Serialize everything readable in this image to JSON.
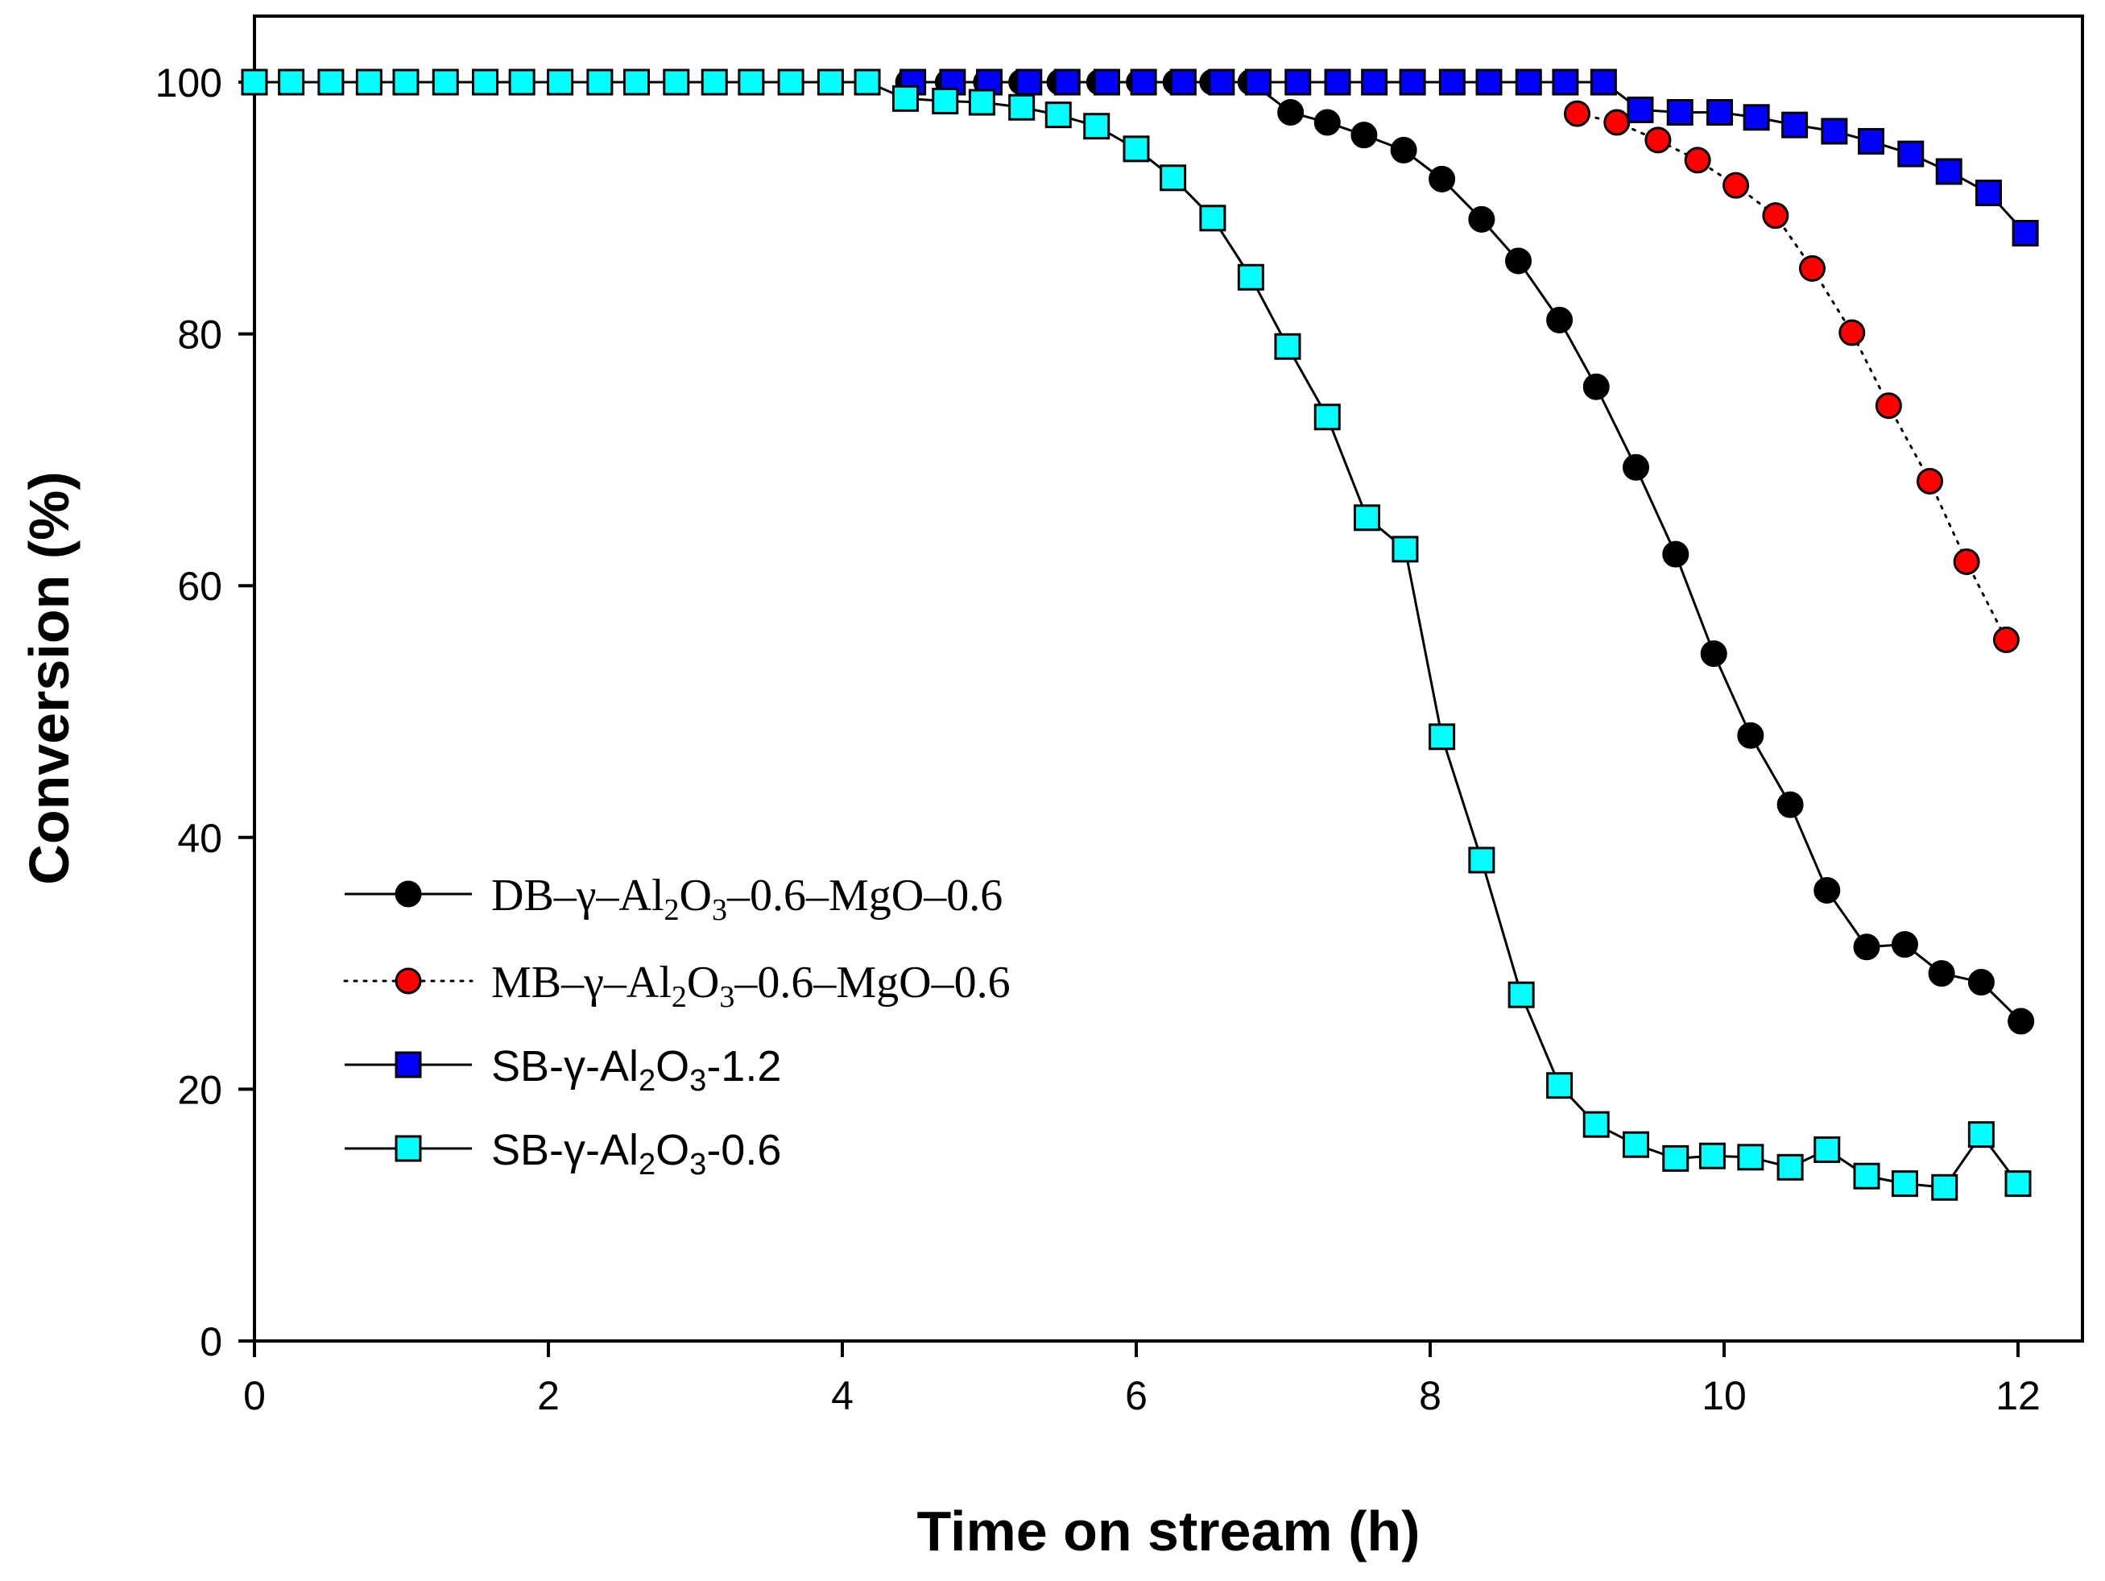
{
  "chart_data": {
    "type": "line",
    "title": "",
    "xlabel": "Time on stream (h)",
    "ylabel": "Conversion (%)",
    "xlim": [
      0,
      12.5
    ],
    "ylim": [
      0,
      100
    ],
    "xticks": [
      0,
      2,
      4,
      6,
      8,
      10,
      12
    ],
    "yticks": [
      0,
      20,
      40,
      60,
      80,
      100
    ],
    "grid": false,
    "legend_position": "lower-left",
    "series": [
      {
        "name": "DB–γ–Al2O3–0.6–MgO–0.6",
        "legend": {
          "pre": "DB–γ–Al",
          "sub1": "2",
          "mid": "O",
          "sub2": "3",
          "post": "–0.6–MgO–0.6"
        },
        "marker": "circle",
        "line_style": "solid",
        "color": "#000000",
        "stroke": "#000000",
        "x": [
          4.45,
          4.72,
          4.98,
          5.22,
          5.48,
          5.75,
          6.02,
          6.27,
          6.52,
          6.78,
          7.05,
          7.3,
          7.55,
          7.82,
          8.08,
          8.35,
          8.6,
          8.88,
          9.13,
          9.4,
          9.67,
          9.93,
          10.18,
          10.45,
          10.7,
          10.97,
          11.23,
          11.48,
          11.75,
          12.02
        ],
        "y": [
          100,
          100,
          100,
          100,
          100,
          100,
          100,
          100,
          100,
          100,
          97.6,
          96.8,
          95.8,
          94.6,
          92.3,
          89.1,
          85.8,
          81.1,
          75.8,
          69.4,
          62.5,
          54.6,
          48.1,
          42.6,
          35.8,
          31.3,
          31.5,
          29.2,
          28.5,
          25.4
        ]
      },
      {
        "name": "MB–γ–Al2O3–0.6–MgO–0.6",
        "legend": {
          "pre": "MB–γ–Al",
          "sub1": "2",
          "mid": "O",
          "sub2": "3",
          "post": "–0.6–MgO–0.6"
        },
        "marker": "circle",
        "line_style": "dotted",
        "color": "#ff0000",
        "stroke": "#000000",
        "x": [
          9.0,
          9.27,
          9.55,
          9.82,
          10.08,
          10.35,
          10.6,
          10.87,
          11.12,
          11.4,
          11.65,
          11.92
        ],
        "y": [
          97.5,
          96.8,
          95.4,
          93.8,
          91.8,
          89.4,
          85.2,
          80.1,
          74.3,
          68.3,
          61.9,
          55.7
        ]
      },
      {
        "name": "SB-γ-Al2O3-1.2",
        "legend": {
          "pre": "SB-γ-Al",
          "sub1": "2",
          "mid": "O",
          "sub2": "3",
          "post": "-1.2"
        },
        "marker": "square",
        "line_style": "solid",
        "color": "#0000ff",
        "stroke": "#000000",
        "x": [
          4.48,
          4.75,
          5.0,
          5.27,
          5.53,
          5.8,
          6.05,
          6.32,
          6.58,
          6.83,
          7.1,
          7.37,
          7.62,
          7.88,
          8.15,
          8.4,
          8.67,
          8.92,
          9.18,
          9.43,
          9.7,
          9.97,
          10.22,
          10.48,
          10.75,
          11.0,
          11.27,
          11.53,
          11.8,
          12.05
        ],
        "y": [
          100,
          100,
          100,
          100,
          100,
          100,
          100,
          100,
          100,
          100,
          100,
          100,
          100,
          100,
          100,
          100,
          100,
          100,
          100,
          97.8,
          97.6,
          97.6,
          97.2,
          96.6,
          96.1,
          95.3,
          94.3,
          92.9,
          91.2,
          88.0
        ]
      },
      {
        "name": "SB-γ-Al2O3-0.6",
        "legend": {
          "pre": "SB-γ-Al",
          "sub1": "2",
          "mid": "O",
          "sub2": "3",
          "post": "-0.6"
        },
        "marker": "square",
        "line_style": "solid",
        "color": "#00ffff",
        "stroke": "#000000",
        "x": [
          0.0,
          0.25,
          0.52,
          0.78,
          1.03,
          1.3,
          1.57,
          1.82,
          2.08,
          2.35,
          2.6,
          2.87,
          3.13,
          3.38,
          3.65,
          3.92,
          4.17,
          4.43,
          4.7,
          4.95,
          5.22,
          5.47,
          5.73,
          6.0,
          6.25,
          6.52,
          6.78,
          7.03,
          7.3,
          7.57,
          7.83,
          8.08,
          8.35,
          8.62,
          8.88,
          9.13,
          9.4,
          9.67,
          9.92,
          10.18,
          10.45,
          10.7,
          10.97,
          11.23,
          11.5,
          11.75,
          12.0
        ],
        "y": [
          100,
          100,
          100,
          100,
          100,
          100,
          100,
          100,
          100,
          100,
          100,
          100,
          100,
          100,
          100,
          100,
          100,
          98.7,
          98.5,
          98.4,
          98.0,
          97.4,
          96.5,
          94.7,
          92.4,
          89.2,
          84.5,
          79.0,
          73.4,
          65.4,
          62.9,
          48.0,
          38.2,
          27.5,
          20.3,
          17.2,
          15.6,
          14.5,
          14.7,
          14.6,
          13.8,
          15.2,
          13.1,
          12.5,
          12.2,
          16.4,
          12.5
        ]
      }
    ]
  }
}
